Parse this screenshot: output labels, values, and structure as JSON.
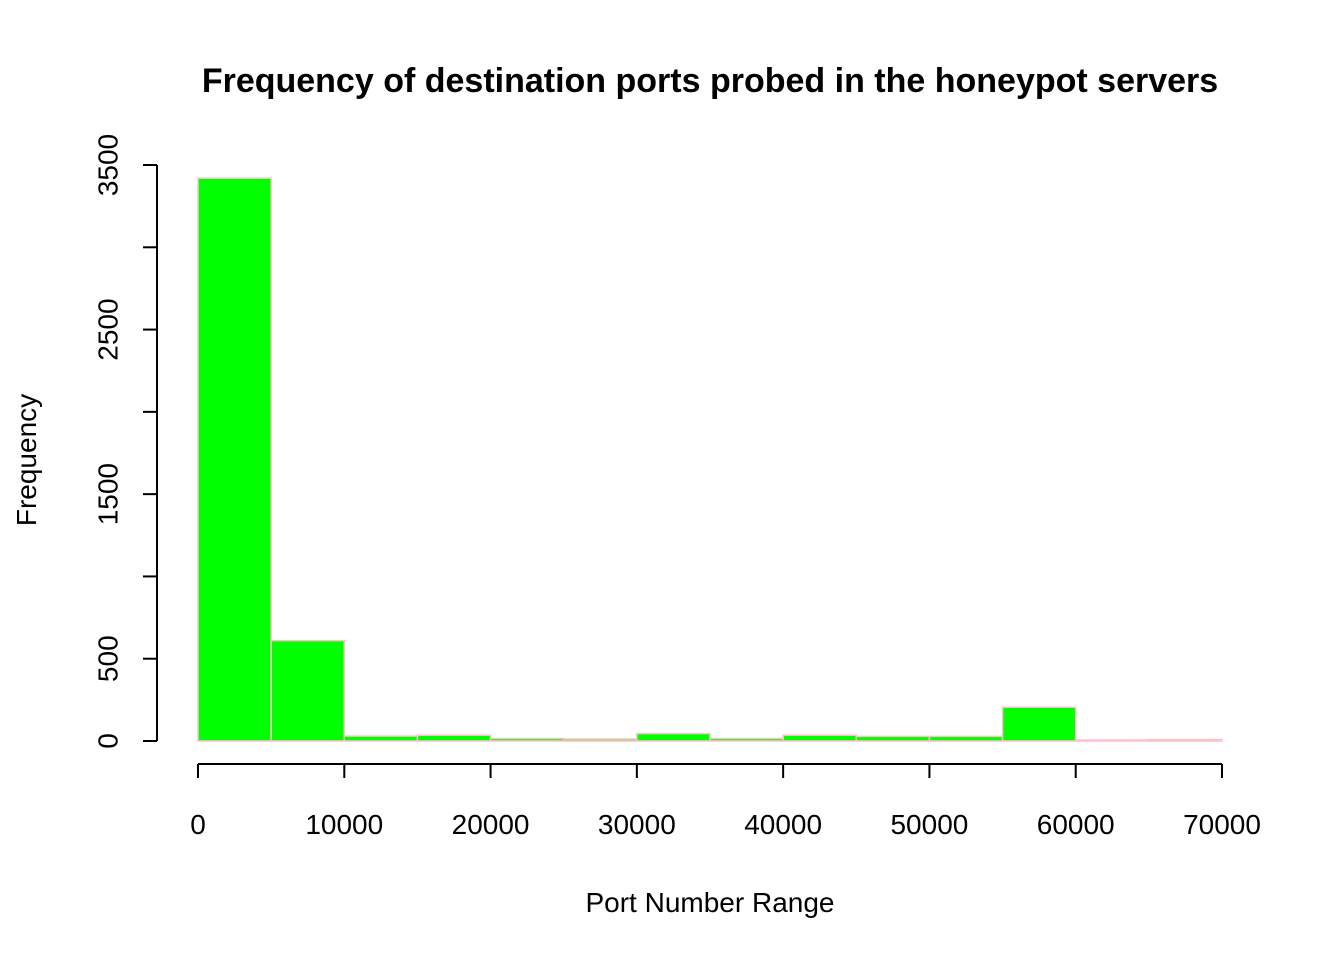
{
  "chart_data": {
    "type": "bar",
    "subtype": "histogram",
    "title": "Frequency of destination ports probed in the honeypot servers",
    "xlabel": "Port Number Range",
    "ylabel": "Frequency",
    "bin_edges": [
      0,
      5000,
      10000,
      15000,
      20000,
      25000,
      30000,
      35000,
      40000,
      45000,
      50000,
      55000,
      60000,
      65000,
      70000
    ],
    "values": [
      3420,
      610,
      30,
      35,
      15,
      12,
      45,
      15,
      35,
      28,
      28,
      205,
      3,
      8
    ],
    "xlim": [
      0,
      70000
    ],
    "ylim": [
      0,
      3500
    ],
    "x_ticks": [
      0,
      10000,
      20000,
      30000,
      40000,
      50000,
      60000,
      70000
    ],
    "x_tick_labels": [
      "0",
      "10000",
      "20000",
      "30000",
      "40000",
      "50000",
      "60000",
      "70000"
    ],
    "y_ticks": [
      0,
      500,
      1000,
      1500,
      2000,
      2500,
      3000,
      3500
    ],
    "y_tick_labels": [
      "0",
      "500",
      "",
      "1500",
      "",
      "2500",
      "",
      "3500"
    ],
    "colors": {
      "bar_fill": "#00ff00",
      "bar_fill_low": "#ffc0cb",
      "bar_border": "#ffc0cb"
    },
    "grid": false,
    "legend": "none"
  }
}
